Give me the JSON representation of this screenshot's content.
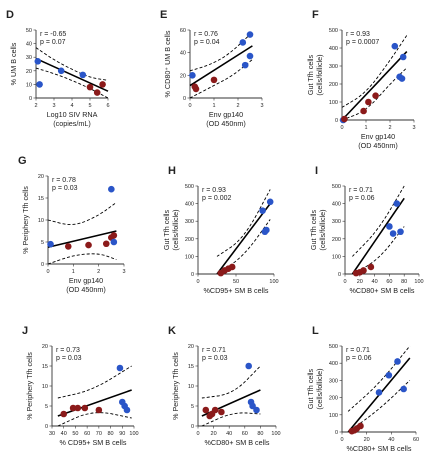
{
  "colors": {
    "red": "#8b1a1a",
    "blue": "#2a55c8"
  },
  "chart_data": [
    {
      "id": "D",
      "panel_label": "D",
      "type": "scatter",
      "xlabel": [
        "Log10 SIV RNA",
        "(copies/mL)"
      ],
      "ylabel": [
        "% UM B cells"
      ],
      "r_label": "r = -0.65",
      "p_label": "p = 0.07",
      "xlim": [
        2,
        6
      ],
      "ylim": [
        0,
        50
      ],
      "xticks": [
        "2",
        "3",
        "4",
        "5",
        "6"
      ],
      "yticks": [
        "0",
        "10",
        "20",
        "30",
        "40",
        "50"
      ],
      "points": [
        {
          "x": 2.1,
          "y": 27,
          "group": "blue"
        },
        {
          "x": 2.2,
          "y": 10,
          "group": "blue"
        },
        {
          "x": 3.4,
          "y": 20,
          "group": "blue"
        },
        {
          "x": 4.6,
          "y": 17,
          "group": "blue"
        },
        {
          "x": 5.0,
          "y": 8,
          "group": "red"
        },
        {
          "x": 5.4,
          "y": 4,
          "group": "red"
        },
        {
          "x": 5.7,
          "y": 10,
          "group": "red"
        }
      ],
      "fit": {
        "x": [
          2,
          6
        ],
        "y": [
          29,
          5
        ]
      },
      "ci_upper": {
        "x": [
          2,
          3,
          4,
          5,
          6
        ],
        "y": [
          37,
          28,
          21,
          15,
          13
        ]
      },
      "ci_lower": {
        "x": [
          2,
          3,
          4,
          5,
          6
        ],
        "y": [
          22,
          18,
          13,
          7,
          0
        ]
      }
    },
    {
      "id": "E",
      "panel_label": "E",
      "type": "scatter",
      "xlabel": [
        "Env gp140",
        "(OD 450nm)"
      ],
      "ylabel": [
        "% CD80⁺ UM B cells"
      ],
      "r_label": "r = 0.76",
      "p_label": "p = 0.04",
      "xlim": [
        0,
        3
      ],
      "ylim": [
        0,
        60
      ],
      "xticks": [
        "0",
        "1",
        "2",
        "3"
      ],
      "yticks": [
        "0",
        "20",
        "40",
        "60"
      ],
      "points": [
        {
          "x": 0.1,
          "y": 20,
          "group": "blue"
        },
        {
          "x": 0.2,
          "y": 10,
          "group": "red"
        },
        {
          "x": 0.25,
          "y": 8,
          "group": "red"
        },
        {
          "x": 1.0,
          "y": 16,
          "group": "red"
        },
        {
          "x": 2.2,
          "y": 49,
          "group": "blue"
        },
        {
          "x": 2.5,
          "y": 56,
          "group": "blue"
        },
        {
          "x": 2.5,
          "y": 37,
          "group": "blue"
        },
        {
          "x": 2.3,
          "y": 29,
          "group": "blue"
        }
      ],
      "fit": {
        "x": [
          0,
          2.6
        ],
        "y": [
          11,
          46
        ]
      },
      "ci_upper": {
        "x": [
          0,
          0.8,
          1.6,
          2.6
        ],
        "y": [
          24,
          29,
          38,
          58
        ]
      },
      "ci_lower": {
        "x": [
          0,
          1.0,
          1.8,
          2.6
        ],
        "y": [
          0,
          11,
          20,
          34
        ]
      }
    },
    {
      "id": "F",
      "panel_label": "F",
      "type": "scatter",
      "xlabel": [
        "Env gp140",
        "(OD 450nm)"
      ],
      "ylabel": [
        "Gut Tfh cells",
        "(cells/follicle)"
      ],
      "r_label": "r = 0.93",
      "p_label": "p = 0.0007",
      "xlim": [
        0,
        3
      ],
      "ylim": [
        0,
        500
      ],
      "xticks": [
        "0",
        "1",
        "2",
        "3"
      ],
      "yticks": [
        "0",
        "100",
        "200",
        "300",
        "400",
        "500"
      ],
      "points": [
        {
          "x": 0.05,
          "y": 0,
          "group": "blue"
        },
        {
          "x": 0.1,
          "y": 5,
          "group": "red"
        },
        {
          "x": 0.9,
          "y": 50,
          "group": "red"
        },
        {
          "x": 1.1,
          "y": 100,
          "group": "red"
        },
        {
          "x": 1.4,
          "y": 135,
          "group": "red"
        },
        {
          "x": 2.2,
          "y": 410,
          "group": "blue"
        },
        {
          "x": 2.4,
          "y": 240,
          "group": "blue"
        },
        {
          "x": 2.5,
          "y": 230,
          "group": "blue"
        },
        {
          "x": 2.55,
          "y": 350,
          "group": "blue"
        }
      ],
      "fit": {
        "x": [
          0,
          2.7
        ],
        "y": [
          0,
          380
        ]
      },
      "ci_upper": {
        "x": [
          0,
          1,
          2,
          2.7
        ],
        "y": [
          70,
          150,
          330,
          470
        ]
      },
      "ci_lower": {
        "x": [
          0,
          1,
          2,
          2.7
        ],
        "y": [
          0,
          50,
          200,
          290
        ]
      }
    },
    {
      "id": "G",
      "panel_label": "G",
      "type": "scatter",
      "xlabel": [
        "Env gp140",
        "(OD 450nm)"
      ],
      "ylabel": [
        "% Periphery Tfh cells"
      ],
      "r_label": "r = 0.78",
      "p_label": "p = 0.03",
      "xlim": [
        0,
        3
      ],
      "ylim": [
        0,
        20
      ],
      "xticks": [
        "0",
        "1",
        "2",
        "3"
      ],
      "yticks": [
        "0",
        "5",
        "10",
        "15",
        "20"
      ],
      "points": [
        {
          "x": 0.1,
          "y": 4.5,
          "group": "blue"
        },
        {
          "x": 0.8,
          "y": 4,
          "group": "red"
        },
        {
          "x": 1.6,
          "y": 4.3,
          "group": "red"
        },
        {
          "x": 2.3,
          "y": 4.6,
          "group": "red"
        },
        {
          "x": 2.5,
          "y": 6,
          "group": "red"
        },
        {
          "x": 2.6,
          "y": 6.5,
          "group": "red"
        },
        {
          "x": 2.5,
          "y": 17,
          "group": "blue"
        },
        {
          "x": 2.6,
          "y": 5,
          "group": "blue"
        }
      ],
      "fit": {
        "x": [
          0,
          2.7
        ],
        "y": [
          3.8,
          7.5
        ]
      },
      "ci_upper": {
        "x": [
          0,
          1,
          2,
          2.7
        ],
        "y": [
          10,
          8.5,
          11,
          14
        ]
      },
      "ci_lower": {
        "x": [
          0,
          1,
          2,
          2.7
        ],
        "y": [
          0,
          2,
          2.5,
          1
        ]
      }
    },
    {
      "id": "H",
      "panel_label": "H",
      "type": "scatter",
      "xlabel": [
        "%CD95+ SM B cells"
      ],
      "ylabel": [
        "Gut Tfh cells",
        "(cells/follicle)"
      ],
      "r_label": "r = 0.93",
      "p_label": "p = 0.002",
      "xlim": [
        0,
        100
      ],
      "ylim": [
        0,
        500
      ],
      "xticks": [
        "0",
        "50",
        "100"
      ],
      "yticks": [
        "0",
        "100",
        "200",
        "300",
        "400",
        "500"
      ],
      "points": [
        {
          "x": 30,
          "y": 5,
          "group": "red"
        },
        {
          "x": 35,
          "y": 20,
          "group": "red"
        },
        {
          "x": 40,
          "y": 30,
          "group": "red"
        },
        {
          "x": 45,
          "y": 40,
          "group": "red"
        },
        {
          "x": 85,
          "y": 360,
          "group": "blue"
        },
        {
          "x": 88,
          "y": 240,
          "group": "blue"
        },
        {
          "x": 90,
          "y": 250,
          "group": "blue"
        },
        {
          "x": 95,
          "y": 410,
          "group": "blue"
        }
      ],
      "fit": {
        "x": [
          25,
          95
        ],
        "y": [
          0,
          400
        ]
      },
      "ci_upper": {
        "x": [
          25,
          60,
          95
        ],
        "y": [
          100,
          200,
          480
        ]
      },
      "ci_lower": {
        "x": [
          25,
          60,
          95
        ],
        "y": [
          0,
          100,
          310
        ]
      }
    },
    {
      "id": "I",
      "panel_label": "I",
      "type": "scatter",
      "xlabel": [
        "%CD80+ SM B cells"
      ],
      "ylabel": [
        "Gut Tfh cells",
        "(cells/follicle)"
      ],
      "r_label": "r = 0.71",
      "p_label": "p = 0.06",
      "xlim": [
        0,
        100
      ],
      "ylim": [
        0,
        500
      ],
      "xticks": [
        "0",
        "20",
        "40",
        "60",
        "80",
        "100"
      ],
      "yticks": [
        "0",
        "100",
        "200",
        "300",
        "400",
        "500"
      ],
      "points": [
        {
          "x": 15,
          "y": 5,
          "group": "red"
        },
        {
          "x": 20,
          "y": 10,
          "group": "red"
        },
        {
          "x": 25,
          "y": 20,
          "group": "red"
        },
        {
          "x": 35,
          "y": 40,
          "group": "red"
        },
        {
          "x": 60,
          "y": 270,
          "group": "blue"
        },
        {
          "x": 65,
          "y": 230,
          "group": "blue"
        },
        {
          "x": 70,
          "y": 400,
          "group": "blue"
        },
        {
          "x": 75,
          "y": 240,
          "group": "blue"
        }
      ],
      "fit": {
        "x": [
          10,
          80
        ],
        "y": [
          0,
          430
        ]
      },
      "ci_upper": {
        "x": [
          10,
          45,
          80
        ],
        "y": [
          100,
          250,
          500
        ]
      },
      "ci_lower": {
        "x": [
          10,
          45,
          80
        ],
        "y": [
          0,
          80,
          270
        ]
      }
    },
    {
      "id": "J",
      "panel_label": "J",
      "type": "scatter",
      "xlabel": [
        "% CD95+ SM B cells"
      ],
      "ylabel": [
        "% Periphery Tfh cells"
      ],
      "r_label": "r = 0.73",
      "p_label": "p = 0.03",
      "xlim": [
        30,
        100
      ],
      "ylim": [
        0,
        20
      ],
      "xticks": [
        "30",
        "40",
        "50",
        "60",
        "70",
        "80",
        "90",
        "100"
      ],
      "yticks": [
        "0",
        "5",
        "10",
        "15",
        "20"
      ],
      "points": [
        {
          "x": 40,
          "y": 3,
          "group": "red"
        },
        {
          "x": 48,
          "y": 4.5,
          "group": "red"
        },
        {
          "x": 52,
          "y": 4.5,
          "group": "red"
        },
        {
          "x": 58,
          "y": 4.5,
          "group": "red"
        },
        {
          "x": 70,
          "y": 4,
          "group": "red"
        },
        {
          "x": 88,
          "y": 14.5,
          "group": "blue"
        },
        {
          "x": 90,
          "y": 6,
          "group": "blue"
        },
        {
          "x": 92,
          "y": 5,
          "group": "blue"
        },
        {
          "x": 94,
          "y": 4,
          "group": "blue"
        }
      ],
      "fit": {
        "x": [
          35,
          98
        ],
        "y": [
          2.5,
          9
        ]
      },
      "ci_upper": {
        "x": [
          35,
          65,
          98
        ],
        "y": [
          7,
          9,
          15
        ]
      },
      "ci_lower": {
        "x": [
          35,
          65,
          98
        ],
        "y": [
          0,
          4,
          2
        ]
      }
    },
    {
      "id": "K",
      "panel_label": "K",
      "type": "scatter",
      "xlabel": [
        "%CD80+ SM B cells"
      ],
      "ylabel": [
        "% Periphery Tfh cells"
      ],
      "r_label": "r = 0.71",
      "p_label": "p = 0.03",
      "xlim": [
        0,
        100
      ],
      "ylim": [
        0,
        20
      ],
      "xticks": [
        "0",
        "20",
        "40",
        "60",
        "80",
        "100"
      ],
      "yticks": [
        "0",
        "5",
        "10",
        "15",
        "20"
      ],
      "points": [
        {
          "x": 10,
          "y": 4,
          "group": "red"
        },
        {
          "x": 15,
          "y": 2.5,
          "group": "red"
        },
        {
          "x": 18,
          "y": 3,
          "group": "red"
        },
        {
          "x": 22,
          "y": 4,
          "group": "red"
        },
        {
          "x": 30,
          "y": 3.5,
          "group": "red"
        },
        {
          "x": 65,
          "y": 15,
          "group": "blue"
        },
        {
          "x": 68,
          "y": 6,
          "group": "blue"
        },
        {
          "x": 70,
          "y": 5,
          "group": "blue"
        },
        {
          "x": 75,
          "y": 4,
          "group": "blue"
        }
      ],
      "fit": {
        "x": [
          5,
          80
        ],
        "y": [
          2.5,
          9
        ]
      },
      "ci_upper": {
        "x": [
          5,
          45,
          80
        ],
        "y": [
          7,
          8,
          15
        ]
      },
      "ci_lower": {
        "x": [
          5,
          45,
          80
        ],
        "y": [
          0,
          3.5,
          3
        ]
      }
    },
    {
      "id": "L",
      "panel_label": "L",
      "type": "scatter",
      "xlabel": [
        "%CD80+ SM B cells"
      ],
      "ylabel": [
        "Gut Tfh cells",
        "(cells/follicle)"
      ],
      "r_label": "r = 0.71",
      "p_label": "p = 0.06",
      "xlim": [
        0,
        60
      ],
      "ylim": [
        0,
        500
      ],
      "xticks": [
        "0",
        "20",
        "40",
        "60"
      ],
      "yticks": [
        "0",
        "100",
        "200",
        "300",
        "400",
        "500"
      ],
      "points": [
        {
          "x": 8,
          "y": 5,
          "group": "red"
        },
        {
          "x": 10,
          "y": 10,
          "group": "red"
        },
        {
          "x": 12,
          "y": 20,
          "group": "red"
        },
        {
          "x": 15,
          "y": 35,
          "group": "red"
        },
        {
          "x": 30,
          "y": 230,
          "group": "blue"
        },
        {
          "x": 38,
          "y": 330,
          "group": "blue"
        },
        {
          "x": 45,
          "y": 410,
          "group": "blue"
        },
        {
          "x": 50,
          "y": 250,
          "group": "blue"
        }
      ],
      "fit": {
        "x": [
          5,
          55
        ],
        "y": [
          0,
          430
        ]
      },
      "ci_upper": {
        "x": [
          5,
          30,
          55
        ],
        "y": [
          120,
          280,
          500
        ]
      },
      "ci_lower": {
        "x": [
          5,
          30,
          55
        ],
        "y": [
          0,
          130,
          300
        ]
      }
    }
  ]
}
